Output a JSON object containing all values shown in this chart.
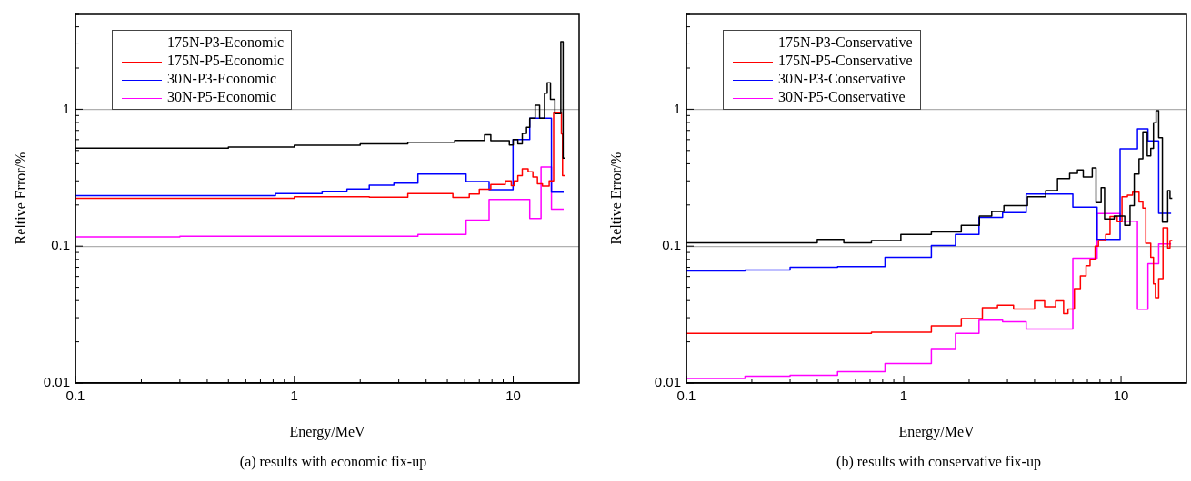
{
  "chart_data": [
    {
      "type": "step",
      "xlabel": "Energy/MeV",
      "ylabel": "Reltive Error/%",
      "log": "xy",
      "xlim": [
        0.1,
        20
      ],
      "ylim": [
        0.01,
        5
      ],
      "xticks": [
        0.1,
        {
          "value": 0.2,
          "label": null
        },
        {
          "value": 0.3,
          "label": null
        },
        {
          "value": 0.4,
          "label": null
        },
        {
          "value": 0.5,
          "label": null
        },
        {
          "value": 0.6,
          "label": null
        },
        {
          "value": 0.7,
          "label": null
        },
        {
          "value": 0.8,
          "label": null
        },
        {
          "value": 0.9,
          "label": null
        },
        1,
        {
          "value": 2,
          "label": null
        },
        {
          "value": 3,
          "label": null
        },
        {
          "value": 4,
          "label": null
        },
        {
          "value": 5,
          "label": null
        },
        {
          "value": 6,
          "label": null
        },
        {
          "value": 7,
          "label": null
        },
        {
          "value": 8,
          "label": null
        },
        {
          "value": 9,
          "label": null
        },
        10
      ],
      "yticks": [
        0.01,
        {
          "value": 0.02,
          "label": null
        },
        {
          "value": 0.03,
          "label": null
        },
        {
          "value": 0.04,
          "label": null
        },
        {
          "value": 0.05,
          "label": null
        },
        {
          "value": 0.06,
          "label": null
        },
        {
          "value": 0.07,
          "label": null
        },
        {
          "value": 0.08,
          "label": null
        },
        {
          "value": 0.09,
          "label": null
        },
        0.1,
        {
          "value": 0.2,
          "label": null
        },
        {
          "value": 0.3,
          "label": null
        },
        {
          "value": 0.4,
          "label": null
        },
        {
          "value": 0.5,
          "label": null
        },
        {
          "value": 0.6,
          "label": null
        },
        {
          "value": 0.7,
          "label": null
        },
        {
          "value": 0.8,
          "label": null
        },
        {
          "value": 0.9,
          "label": null
        },
        1,
        {
          "value": 2,
          "label": null
        },
        {
          "value": 3,
          "label": null
        },
        {
          "value": 4,
          "label": null
        },
        {
          "value": 5,
          "label": null
        }
      ],
      "grid": "y",
      "legend": "top left",
      "annotations": [
        "(a)  results with economic fix-up"
      ],
      "series": [
        {
          "name": "175N-P3-Economic",
          "color": "#000000",
          "x": [
            0.1,
            0.5,
            1,
            2,
            3.3,
            5.4,
            7.4,
            7.9,
            9.6,
            10,
            10.5,
            11,
            11.5,
            11.9,
            12.6,
            13.2,
            13.9,
            14.3,
            14.8,
            15.5,
            16.5,
            16.9,
            17.2
          ],
          "values": [
            0.52,
            0.53,
            0.547,
            0.56,
            0.573,
            0.593,
            0.65,
            0.59,
            0.548,
            0.6,
            0.56,
            0.667,
            0.738,
            0.86,
            1.07,
            0.86,
            1.31,
            1.56,
            1.18,
            0.93,
            3.12,
            0.44,
            0.44
          ]
        },
        {
          "name": "175N-P5-Economic",
          "color": "#ff0000",
          "x": [
            0.1,
            1,
            2.2,
            3.3,
            5.3,
            6.3,
            7,
            7.9,
            9.2,
            9.8,
            10.1,
            10.5,
            11,
            11.7,
            12.3,
            12.9,
            13.6,
            14.6,
            15.3,
            16.6,
            16.8,
            17.2
          ],
          "values": [
            0.224,
            0.23,
            0.228,
            0.242,
            0.227,
            0.24,
            0.26,
            0.282,
            0.3,
            0.277,
            0.3,
            0.328,
            0.367,
            0.35,
            0.32,
            0.286,
            0.275,
            0.3,
            0.95,
            0.66,
            0.328,
            0.328
          ]
        },
        {
          "name": "30N-P3-Economic",
          "color": "#0000ff",
          "x": [
            0.1,
            0.82,
            1.34,
            1.74,
            2.2,
            2.85,
            3.67,
            6.09,
            7.76,
            9.98,
            11.9,
            14.95,
            17
          ],
          "values": [
            0.234,
            0.242,
            0.25,
            0.261,
            0.279,
            0.289,
            0.337,
            0.297,
            0.259,
            0.6,
            0.86,
            0.248,
            0.248
          ]
        },
        {
          "name": "30N-P5-Economic",
          "color": "#ff00ff",
          "x": [
            0.1,
            0.3,
            3.67,
            6.09,
            7.76,
            11.9,
            13.4,
            14.95,
            17
          ],
          "values": [
            0.117,
            0.118,
            0.122,
            0.155,
            0.219,
            0.159,
            0.379,
            0.186,
            0.186
          ]
        }
      ]
    },
    {
      "type": "step",
      "xlabel": "Energy/MeV",
      "ylabel": "Reltive Error/%",
      "log": "xy",
      "xlim": [
        0.1,
        20
      ],
      "ylim": [
        0.01,
        5
      ],
      "xticks": [
        0.1,
        {
          "value": 0.2,
          "label": null
        },
        {
          "value": 0.3,
          "label": null
        },
        {
          "value": 0.4,
          "label": null
        },
        {
          "value": 0.5,
          "label": null
        },
        {
          "value": 0.6,
          "label": null
        },
        {
          "value": 0.7,
          "label": null
        },
        {
          "value": 0.8,
          "label": null
        },
        {
          "value": 0.9,
          "label": null
        },
        1,
        {
          "value": 2,
          "label": null
        },
        {
          "value": 3,
          "label": null
        },
        {
          "value": 4,
          "label": null
        },
        {
          "value": 5,
          "label": null
        },
        {
          "value": 6,
          "label": null
        },
        {
          "value": 7,
          "label": null
        },
        {
          "value": 8,
          "label": null
        },
        {
          "value": 9,
          "label": null
        },
        10
      ],
      "yticks": [
        0.01,
        {
          "value": 0.02,
          "label": null
        },
        {
          "value": 0.03,
          "label": null
        },
        {
          "value": 0.04,
          "label": null
        },
        {
          "value": 0.05,
          "label": null
        },
        {
          "value": 0.06,
          "label": null
        },
        {
          "value": 0.07,
          "label": null
        },
        {
          "value": 0.08,
          "label": null
        },
        {
          "value": 0.09,
          "label": null
        },
        0.1,
        {
          "value": 0.2,
          "label": null
        },
        {
          "value": 0.3,
          "label": null
        },
        {
          "value": 0.4,
          "label": null
        },
        {
          "value": 0.5,
          "label": null
        },
        {
          "value": 0.6,
          "label": null
        },
        {
          "value": 0.7,
          "label": null
        },
        {
          "value": 0.8,
          "label": null
        },
        {
          "value": 0.9,
          "label": null
        },
        1,
        {
          "value": 2,
          "label": null
        },
        {
          "value": 3,
          "label": null
        },
        {
          "value": 4,
          "label": null
        },
        {
          "value": 5,
          "label": null
        }
      ],
      "grid": "y",
      "legend": "top left",
      "annotations": [
        "(b)  results with conservative fix-up"
      ],
      "series": [
        {
          "name": "175N-P3-Conservative",
          "color": "#000000",
          "x": [
            0.1,
            0.4,
            0.53,
            0.71,
            0.97,
            1.34,
            1.84,
            2.23,
            2.54,
            2.89,
            3.71,
            4.5,
            5.1,
            5.8,
            6.3,
            6.7,
            7.37,
            7.67,
            8.1,
            8.4,
            9.3,
            10.4,
            11,
            11.5,
            12.1,
            12.6,
            13.2,
            13.7,
            14.1,
            14.5,
            14.9,
            15.5,
            16.4,
            16.8,
            17.2
          ],
          "values": [
            0.106,
            0.112,
            0.106,
            0.11,
            0.122,
            0.127,
            0.142,
            0.166,
            0.179,
            0.198,
            0.23,
            0.255,
            0.312,
            0.34,
            0.36,
            0.32,
            0.373,
            0.208,
            0.268,
            0.158,
            0.166,
            0.142,
            0.198,
            0.337,
            0.434,
            0.684,
            0.456,
            0.518,
            0.796,
            0.975,
            0.62,
            0.15,
            0.255,
            0.224,
            0.224
          ]
        },
        {
          "name": "175N-P5-Conservative",
          "color": "#ff0000",
          "x": [
            0.1,
            0.71,
            1.34,
            1.84,
            2.3,
            2.7,
            3.2,
            4,
            4.45,
            5,
            5.44,
            5.7,
            6.1,
            6.5,
            6.9,
            7.2,
            7.6,
            7.87,
            8.5,
            8.9,
            9.6,
            10.1,
            10.7,
            11.3,
            12.1,
            12.6,
            13,
            13.7,
            14.1,
            14.4,
            14.9,
            15.6,
            16.4,
            16.8,
            17.2
          ],
          "values": [
            0.0231,
            0.0235,
            0.0262,
            0.0296,
            0.0355,
            0.037,
            0.0347,
            0.0398,
            0.036,
            0.0398,
            0.0322,
            0.0347,
            0.049,
            0.0605,
            0.072,
            0.08,
            0.1,
            0.11,
            0.122,
            0.165,
            0.151,
            0.23,
            0.236,
            0.248,
            0.21,
            0.19,
            0.105,
            0.083,
            0.053,
            0.042,
            0.058,
            0.136,
            0.097,
            0.11,
            0.11
          ]
        },
        {
          "name": "30N-P3-Conservative",
          "color": "#0000ff",
          "x": [
            0.1,
            0.186,
            0.3,
            0.496,
            0.82,
            1.34,
            1.73,
            2.22,
            2.85,
            3.66,
            6,
            7.76,
            9.9,
            11.9,
            13.3,
            14.9,
            17
          ],
          "values": [
            0.066,
            0.067,
            0.07,
            0.071,
            0.083,
            0.101,
            0.122,
            0.162,
            0.176,
            0.24,
            0.193,
            0.112,
            0.513,
            0.719,
            0.588,
            0.174,
            0.174
          ]
        },
        {
          "name": "30N-P5-Conservative",
          "color": "#ff00ff",
          "x": [
            0.1,
            0.186,
            0.3,
            0.496,
            0.82,
            1.34,
            1.73,
            2.22,
            2.85,
            3.66,
            6,
            7.76,
            9.9,
            11.9,
            13.3,
            14.9,
            17
          ],
          "values": [
            0.0108,
            0.0112,
            0.0114,
            0.0121,
            0.0139,
            0.0176,
            0.0231,
            0.0288,
            0.028,
            0.0248,
            0.0817,
            0.173,
            0.152,
            0.0346,
            0.0746,
            0.104,
            0.104
          ]
        }
      ]
    }
  ]
}
